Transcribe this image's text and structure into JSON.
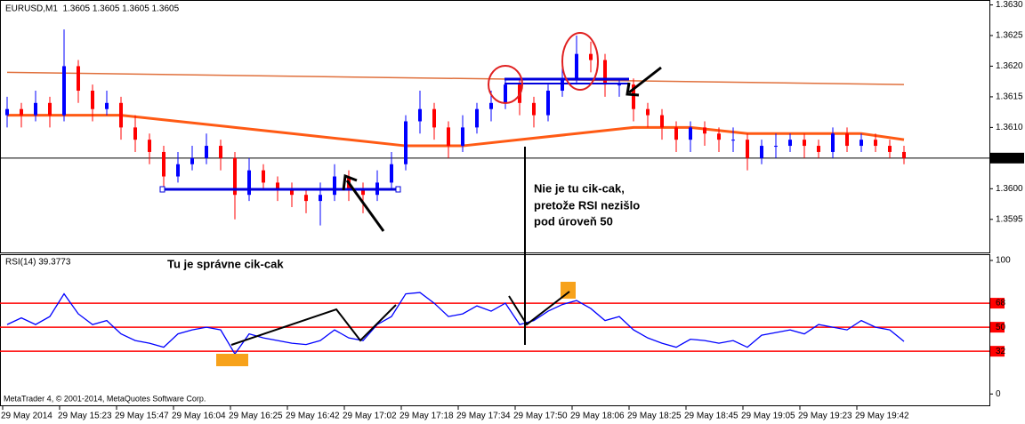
{
  "chart_data": [
    {
      "type": "candlestick",
      "title": "EURUSD,M1  1.3605 1.3605 1.3605 1.3605",
      "open": [
        1.3612,
        1.3613,
        1.3612,
        1.3614,
        1.3612,
        1.362,
        1.3616,
        1.3613,
        1.3614,
        1.361,
        1.3608,
        1.3606,
        1.3602,
        1.3604,
        1.3605,
        1.3607,
        1.3605,
        1.3599,
        1.3603,
        1.3601,
        1.36,
        1.3599,
        1.3598,
        1.3599,
        1.3602,
        1.36,
        1.3599,
        1.3601,
        1.3604,
        1.3611,
        1.3613,
        1.361,
        1.3607,
        1.361,
        1.3613,
        1.3614,
        1.3617,
        1.3614,
        1.3612,
        1.3616,
        1.3618,
        1.3622,
        1.3621,
        1.3617,
        1.3617,
        1.3613,
        1.3612,
        1.361,
        1.3608,
        1.361,
        1.3609,
        1.3608,
        1.3608,
        1.3605,
        1.3607,
        1.3607,
        1.3608,
        1.3607,
        1.3606,
        1.3609,
        1.3607,
        1.3608,
        1.3607,
        1.3606
      ],
      "high": [
        1.3615,
        1.3614,
        1.3616,
        1.3615,
        1.3626,
        1.3621,
        1.3617,
        1.3616,
        1.3615,
        1.3612,
        1.3609,
        1.3607,
        1.3606,
        1.3607,
        1.3609,
        1.3608,
        1.3606,
        1.3605,
        1.3604,
        1.3602,
        1.3601,
        1.36,
        1.3601,
        1.3604,
        1.3603,
        1.3601,
        1.3603,
        1.3606,
        1.3612,
        1.3616,
        1.3614,
        1.3611,
        1.3612,
        1.3614,
        1.3616,
        1.3618,
        1.3618,
        1.3615,
        1.3617,
        1.362,
        1.3625,
        1.3624,
        1.3622,
        1.3618,
        1.3618,
        1.3614,
        1.3613,
        1.3611,
        1.3611,
        1.3611,
        1.361,
        1.361,
        1.3609,
        1.3608,
        1.3609,
        1.3609,
        1.3609,
        1.3608,
        1.361,
        1.361,
        1.3609,
        1.3609,
        1.3608,
        1.3607
      ],
      "low": [
        1.361,
        1.361,
        1.3611,
        1.361,
        1.3611,
        1.3614,
        1.3611,
        1.3612,
        1.3608,
        1.3606,
        1.3604,
        1.36,
        1.3601,
        1.3603,
        1.3604,
        1.3603,
        1.3595,
        1.3598,
        1.36,
        1.3598,
        1.3597,
        1.3596,
        1.3594,
        1.3598,
        1.3598,
        1.3596,
        1.3598,
        1.36,
        1.3603,
        1.3609,
        1.3608,
        1.3605,
        1.3606,
        1.3609,
        1.3611,
        1.3613,
        1.3612,
        1.361,
        1.3611,
        1.3615,
        1.3617,
        1.3619,
        1.3615,
        1.3615,
        1.3611,
        1.361,
        1.3608,
        1.3606,
        1.3606,
        1.3607,
        1.3606,
        1.3606,
        1.3603,
        1.3604,
        1.3605,
        1.3606,
        1.3605,
        1.3605,
        1.3605,
        1.3606,
        1.3606,
        1.3606,
        1.3605,
        1.3604
      ],
      "close": [
        1.3613,
        1.3612,
        1.3614,
        1.3612,
        1.362,
        1.3616,
        1.3613,
        1.3614,
        1.361,
        1.3608,
        1.3606,
        1.3602,
        1.3604,
        1.3605,
        1.3607,
        1.3605,
        1.3599,
        1.3603,
        1.3601,
        1.36,
        1.3599,
        1.3598,
        1.3599,
        1.3602,
        1.36,
        1.3599,
        1.3601,
        1.3604,
        1.3611,
        1.3613,
        1.361,
        1.3607,
        1.361,
        1.3613,
        1.3614,
        1.3617,
        1.3614,
        1.3612,
        1.3616,
        1.3618,
        1.3622,
        1.3621,
        1.3617,
        1.3617,
        1.3613,
        1.3612,
        1.361,
        1.3608,
        1.361,
        1.3609,
        1.3608,
        1.3608,
        1.3605,
        1.3607,
        1.3607,
        1.3608,
        1.3607,
        1.3606,
        1.3609,
        1.3607,
        1.3608,
        1.3607,
        1.3606,
        1.3605
      ],
      "up_color": "#0000ff",
      "down_color": "#ff0000",
      "ylim": [
        1.35896,
        1.36308
      ],
      "yticks": [
        {
          "value": 1.363,
          "label": "1.3630"
        },
        1.3625,
        {
          "value": 1.362,
          "label": "1.3620"
        },
        1.3615,
        {
          "value": 1.361,
          "label": "1.3610"
        },
        {
          "value": 1.36,
          "label": "1.3600"
        },
        1.3595
      ],
      "current_price": 1.3605,
      "moving_averages": [
        {
          "color": "#ff5a14",
          "x": [
            0,
            4,
            8,
            12,
            16,
            20,
            24,
            28,
            32,
            36,
            40,
            44,
            48,
            52,
            56,
            60,
            63
          ],
          "values": [
            1.3612,
            1.3612,
            1.3612,
            1.3611,
            1.361,
            1.3609,
            1.3608,
            1.3607,
            1.3607,
            1.3608,
            1.3609,
            1.361,
            1.361,
            1.3609,
            1.3609,
            1.3609,
            1.3608
          ]
        },
        {
          "color": "#e0703c",
          "x": [
            0,
            63
          ],
          "values": [
            1.3619,
            1.3617
          ]
        }
      ]
    },
    {
      "type": "line",
      "title": "RSI(14) 39.3773",
      "categories": [
        "29 May 2014",
        null,
        null,
        null,
        "29 May 15:23",
        null,
        null,
        null,
        "29 May 15:47",
        null,
        null,
        null,
        "29 May 16:04",
        null,
        null,
        null,
        "29 May 16:25",
        null,
        null,
        null,
        "29 May 16:42",
        null,
        null,
        null,
        "29 May 17:02",
        null,
        null,
        null,
        "29 May 17:18",
        null,
        null,
        null,
        "29 May 17:34",
        null,
        null,
        null,
        "29 May 17:50",
        null,
        null,
        null,
        "29 May 18:06",
        null,
        null,
        null,
        "29 May 18:25",
        null,
        null,
        null,
        "29 May 18:45",
        null,
        null,
        null,
        "29 May 19:05",
        null,
        null,
        null,
        "29 May 19:23",
        null,
        null,
        null,
        "29 May 19:42",
        null,
        null,
        null
      ],
      "values": [
        52,
        57,
        52,
        58,
        75,
        60,
        52,
        55,
        45,
        40,
        38,
        35,
        45,
        48,
        50,
        48,
        30,
        45,
        42,
        40,
        38,
        37,
        40,
        48,
        42,
        40,
        52,
        58,
        75,
        76,
        68,
        58,
        60,
        66,
        62,
        68,
        52,
        55,
        62,
        67,
        70,
        64,
        55,
        58,
        48,
        42,
        38,
        35,
        41,
        40,
        38,
        40,
        35,
        44,
        46,
        48,
        45,
        52,
        50,
        48,
        55,
        50,
        48,
        39.3773
      ],
      "color": "#0000ff",
      "ylim": [
        -8.5,
        104
      ],
      "yticks": [
        100,
        68,
        50,
        32,
        0
      ],
      "levels": [
        68,
        50,
        32
      ],
      "level_color": "#ff0000"
    }
  ],
  "annotations": {
    "correct": "Tu je správne cik-cak",
    "incorrect": [
      "Nie je tu cik-cak,",
      "pretože RSI nezišlo",
      "pod úroveň 50"
    ]
  },
  "footer": "MetaTrader 4, © 2001-2014, MetaQuotes Software Corp."
}
